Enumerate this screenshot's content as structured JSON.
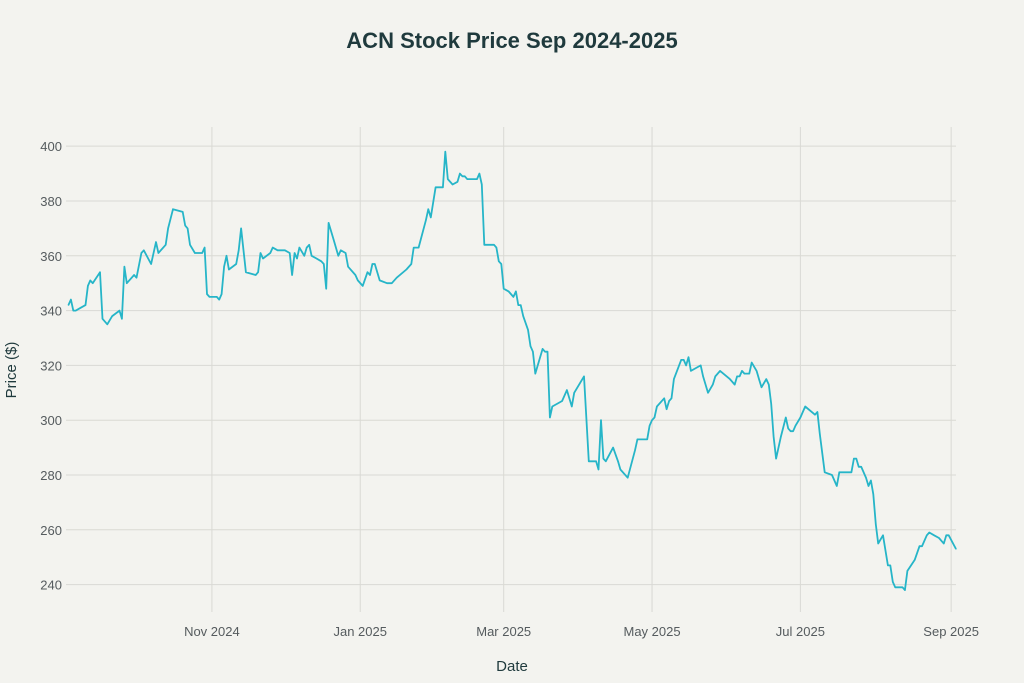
{
  "chart_data": {
    "type": "line",
    "title": "ACN Stock Price Sep 2024-2025",
    "xlabel": "Date",
    "ylabel": "Price ($)",
    "xlim": [
      "2024-09-02",
      "2025-09-03"
    ],
    "ylim": [
      230,
      407
    ],
    "grid": true,
    "line_color": "#26b5c8",
    "x_ticks": [
      {
        "date": "2024-11-01",
        "label": "Nov 2024"
      },
      {
        "date": "2025-01-01",
        "label": "Jan 2025"
      },
      {
        "date": "2025-03-01",
        "label": "Mar 2025"
      },
      {
        "date": "2025-05-01",
        "label": "May 2025"
      },
      {
        "date": "2025-07-01",
        "label": "Jul 2025"
      },
      {
        "date": "2025-09-01",
        "label": "Sep 2025"
      }
    ],
    "y_ticks": [
      240,
      260,
      280,
      300,
      320,
      340,
      360,
      380,
      400
    ],
    "series": [
      {
        "points": [
          [
            "2024-09-03",
            342
          ],
          [
            "2024-09-04",
            344
          ],
          [
            "2024-09-05",
            340
          ],
          [
            "2024-09-06",
            340
          ],
          [
            "2024-09-08",
            341
          ],
          [
            "2024-09-10",
            342
          ],
          [
            "2024-09-11",
            349
          ],
          [
            "2024-09-12",
            351
          ],
          [
            "2024-09-13",
            350
          ],
          [
            "2024-09-16",
            354
          ],
          [
            "2024-09-17",
            337
          ],
          [
            "2024-09-19",
            335
          ],
          [
            "2024-09-21",
            338
          ],
          [
            "2024-09-24",
            340
          ],
          [
            "2024-09-25",
            337
          ],
          [
            "2024-09-26",
            356
          ],
          [
            "2024-09-27",
            350
          ],
          [
            "2024-09-30",
            353
          ],
          [
            "2024-10-01",
            352
          ],
          [
            "2024-10-03",
            361
          ],
          [
            "2024-10-04",
            362
          ],
          [
            "2024-10-07",
            357
          ],
          [
            "2024-10-09",
            365
          ],
          [
            "2024-10-10",
            361
          ],
          [
            "2024-10-13",
            364
          ],
          [
            "2024-10-14",
            370
          ],
          [
            "2024-10-16",
            377
          ],
          [
            "2024-10-20",
            376
          ],
          [
            "2024-10-21",
            371
          ],
          [
            "2024-10-22",
            370
          ],
          [
            "2024-10-23",
            364
          ],
          [
            "2024-10-25",
            361
          ],
          [
            "2024-10-28",
            361
          ],
          [
            "2024-10-29",
            363
          ],
          [
            "2024-10-30",
            346
          ],
          [
            "2024-10-31",
            345
          ],
          [
            "2024-11-03",
            345
          ],
          [
            "2024-11-04",
            344
          ],
          [
            "2024-11-05",
            346
          ],
          [
            "2024-11-06",
            356
          ],
          [
            "2024-11-07",
            360
          ],
          [
            "2024-11-08",
            355
          ],
          [
            "2024-11-11",
            357
          ],
          [
            "2024-11-12",
            362
          ],
          [
            "2024-11-13",
            370
          ],
          [
            "2024-11-15",
            354
          ],
          [
            "2024-11-19",
            353
          ],
          [
            "2024-11-20",
            354
          ],
          [
            "2024-11-21",
            361
          ],
          [
            "2024-11-22",
            359
          ],
          [
            "2024-11-25",
            361
          ],
          [
            "2024-11-26",
            363
          ],
          [
            "2024-11-28",
            362
          ],
          [
            "2024-12-01",
            362
          ],
          [
            "2024-12-03",
            361
          ],
          [
            "2024-12-04",
            353
          ],
          [
            "2024-12-05",
            361
          ],
          [
            "2024-12-06",
            359
          ],
          [
            "2024-12-07",
            363
          ],
          [
            "2024-12-09",
            360
          ],
          [
            "2024-12-10",
            363
          ],
          [
            "2024-12-11",
            364
          ],
          [
            "2024-12-12",
            360
          ],
          [
            "2024-12-14",
            359
          ],
          [
            "2024-12-16",
            358
          ],
          [
            "2024-12-17",
            357
          ],
          [
            "2024-12-18",
            348
          ],
          [
            "2024-12-19",
            372
          ],
          [
            "2024-12-21",
            366
          ],
          [
            "2024-12-23",
            360
          ],
          [
            "2024-12-24",
            362
          ],
          [
            "2024-12-26",
            361
          ],
          [
            "2024-12-27",
            356
          ],
          [
            "2024-12-30",
            353
          ],
          [
            "2024-12-31",
            351
          ],
          [
            "2025-01-02",
            349
          ],
          [
            "2025-01-04",
            354
          ],
          [
            "2025-01-05",
            353
          ],
          [
            "2025-01-06",
            357
          ],
          [
            "2025-01-07",
            357
          ],
          [
            "2025-01-09",
            351
          ],
          [
            "2025-01-12",
            350
          ],
          [
            "2025-01-14",
            350
          ],
          [
            "2025-01-16",
            352
          ],
          [
            "2025-01-20",
            355
          ],
          [
            "2025-01-22",
            357
          ],
          [
            "2025-01-23",
            363
          ],
          [
            "2025-01-25",
            363
          ],
          [
            "2025-01-28",
            373
          ],
          [
            "2025-01-29",
            377
          ],
          [
            "2025-01-30",
            374
          ],
          [
            "2025-02-01",
            385
          ],
          [
            "2025-02-04",
            385
          ],
          [
            "2025-02-05",
            398
          ],
          [
            "2025-02-06",
            388
          ],
          [
            "2025-02-08",
            386
          ],
          [
            "2025-02-10",
            387
          ],
          [
            "2025-02-11",
            390
          ],
          [
            "2025-02-12",
            389
          ],
          [
            "2025-02-13",
            389
          ],
          [
            "2025-02-14",
            388
          ],
          [
            "2025-02-18",
            388
          ],
          [
            "2025-02-19",
            390
          ],
          [
            "2025-02-20",
            386
          ],
          [
            "2025-02-21",
            364
          ],
          [
            "2025-02-25",
            364
          ],
          [
            "2025-02-26",
            363
          ],
          [
            "2025-02-27",
            358
          ],
          [
            "2025-02-28",
            357
          ],
          [
            "2025-03-01",
            348
          ],
          [
            "2025-03-03",
            347
          ],
          [
            "2025-03-05",
            345
          ],
          [
            "2025-03-06",
            347
          ],
          [
            "2025-03-07",
            342
          ],
          [
            "2025-03-08",
            342
          ],
          [
            "2025-03-09",
            338
          ],
          [
            "2025-03-11",
            333
          ],
          [
            "2025-03-12",
            327
          ],
          [
            "2025-03-13",
            325
          ],
          [
            "2025-03-14",
            317
          ],
          [
            "2025-03-17",
            326
          ],
          [
            "2025-03-18",
            325
          ],
          [
            "2025-03-19",
            325
          ],
          [
            "2025-03-20",
            301
          ],
          [
            "2025-03-21",
            305
          ],
          [
            "2025-03-25",
            307
          ],
          [
            "2025-03-27",
            311
          ],
          [
            "2025-03-29",
            305
          ],
          [
            "2025-03-30",
            310
          ],
          [
            "2025-04-03",
            316
          ],
          [
            "2025-04-05",
            285
          ],
          [
            "2025-04-08",
            285
          ],
          [
            "2025-04-09",
            282
          ],
          [
            "2025-04-10",
            300
          ],
          [
            "2025-04-11",
            286
          ],
          [
            "2025-04-12",
            285
          ],
          [
            "2025-04-15",
            290
          ],
          [
            "2025-04-17",
            285
          ],
          [
            "2025-04-18",
            282
          ],
          [
            "2025-04-21",
            279
          ],
          [
            "2025-04-24",
            289
          ],
          [
            "2025-04-25",
            293
          ],
          [
            "2025-04-29",
            293
          ],
          [
            "2025-04-30",
            298
          ],
          [
            "2025-05-01",
            300
          ],
          [
            "2025-05-02",
            301
          ],
          [
            "2025-05-03",
            305
          ],
          [
            "2025-05-06",
            308
          ],
          [
            "2025-05-07",
            304
          ],
          [
            "2025-05-08",
            307
          ],
          [
            "2025-05-09",
            308
          ],
          [
            "2025-05-10",
            315
          ],
          [
            "2025-05-13",
            322
          ],
          [
            "2025-05-14",
            322
          ],
          [
            "2025-05-15",
            320
          ],
          [
            "2025-05-16",
            323
          ],
          [
            "2025-05-17",
            318
          ],
          [
            "2025-05-21",
            320
          ],
          [
            "2025-05-22",
            316
          ],
          [
            "2025-05-24",
            310
          ],
          [
            "2025-05-26",
            313
          ],
          [
            "2025-05-27",
            316
          ],
          [
            "2025-05-29",
            318
          ],
          [
            "2025-06-02",
            315
          ],
          [
            "2025-06-04",
            313
          ],
          [
            "2025-06-05",
            316
          ],
          [
            "2025-06-06",
            316
          ],
          [
            "2025-06-07",
            318
          ],
          [
            "2025-06-08",
            317
          ],
          [
            "2025-06-10",
            317
          ],
          [
            "2025-06-11",
            321
          ],
          [
            "2025-06-13",
            318
          ],
          [
            "2025-06-14",
            315
          ],
          [
            "2025-06-15",
            312
          ],
          [
            "2025-06-17",
            315
          ],
          [
            "2025-06-18",
            313
          ],
          [
            "2025-06-19",
            306
          ],
          [
            "2025-06-20",
            294
          ],
          [
            "2025-06-21",
            286
          ],
          [
            "2025-06-23",
            294
          ],
          [
            "2025-06-25",
            301
          ],
          [
            "2025-06-26",
            297
          ],
          [
            "2025-06-27",
            296
          ],
          [
            "2025-06-28",
            296
          ],
          [
            "2025-06-29",
            298
          ],
          [
            "2025-07-01",
            301
          ],
          [
            "2025-07-02",
            303
          ],
          [
            "2025-07-03",
            305
          ],
          [
            "2025-07-07",
            302
          ],
          [
            "2025-07-08",
            303
          ],
          [
            "2025-07-09",
            295
          ],
          [
            "2025-07-11",
            281
          ],
          [
            "2025-07-14",
            280
          ],
          [
            "2025-07-16",
            276
          ],
          [
            "2025-07-17",
            281
          ],
          [
            "2025-07-22",
            281
          ],
          [
            "2025-07-23",
            286
          ],
          [
            "2025-07-24",
            286
          ],
          [
            "2025-07-25",
            283
          ],
          [
            "2025-07-26",
            283
          ],
          [
            "2025-07-28",
            279
          ],
          [
            "2025-07-29",
            276
          ],
          [
            "2025-07-30",
            278
          ],
          [
            "2025-07-31",
            273
          ],
          [
            "2025-08-01",
            262
          ],
          [
            "2025-08-02",
            255
          ],
          [
            "2025-08-04",
            258
          ],
          [
            "2025-08-06",
            247
          ],
          [
            "2025-08-07",
            247
          ],
          [
            "2025-08-08",
            241
          ],
          [
            "2025-08-09",
            239
          ],
          [
            "2025-08-12",
            239
          ],
          [
            "2025-08-13",
            238
          ],
          [
            "2025-08-14",
            245
          ],
          [
            "2025-08-17",
            249
          ],
          [
            "2025-08-19",
            254
          ],
          [
            "2025-08-20",
            254
          ],
          [
            "2025-08-21",
            256
          ],
          [
            "2025-08-22",
            258
          ],
          [
            "2025-08-23",
            259
          ],
          [
            "2025-08-25",
            258
          ],
          [
            "2025-08-27",
            257
          ],
          [
            "2025-08-28",
            256
          ],
          [
            "2025-08-29",
            255
          ],
          [
            "2025-08-30",
            258
          ],
          [
            "2025-08-31",
            258
          ],
          [
            "2025-09-03",
            253
          ]
        ]
      }
    ]
  }
}
